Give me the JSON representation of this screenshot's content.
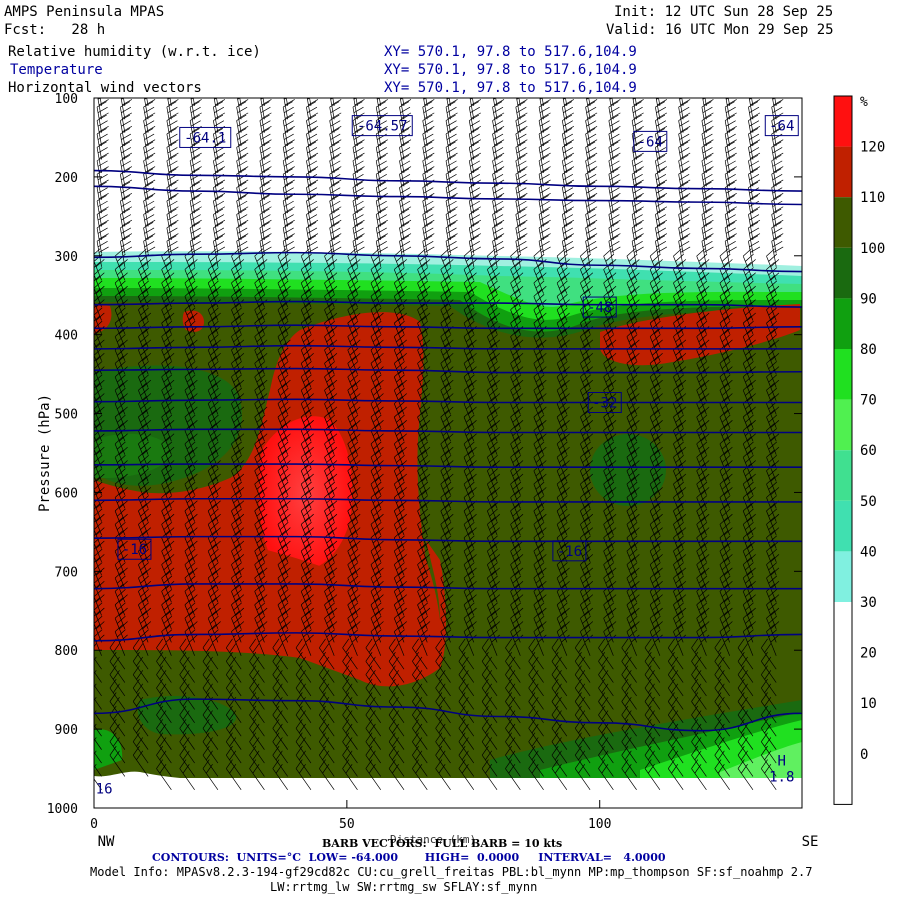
{
  "header": {
    "title": "AMPS Peninsula MPAS",
    "fcst": "Fcst:   28 h",
    "init": "Init: 12 UTC Sun 28 Sep 25",
    "valid": "Valid: 16 UTC Mon 29 Sep 25",
    "fields": [
      {
        "label": "Relative humidity (w.r.t. ice)",
        "xy": "XY= 570.1, 97.8 to 517.6,104.9"
      },
      {
        "label": "Temperature",
        "xy": "XY= 570.1, 97.8 to 517.6,104.9"
      },
      {
        "label": "Horizontal wind vectors",
        "xy": "XY= 570.1, 97.8 to 517.6,104.9"
      }
    ]
  },
  "footer": {
    "barb_note": "BARB VECTORS:  FULL BARB = 10 kts",
    "xlabel_partial": "Distance (km)",
    "contours": "CONTOURS:  UNITS=°C  LOW= -64.000       HIGH=  0.0000     INTERVAL=   4.0000",
    "model_info": "Model Info: MPASv8.2.3-194-gf29cd82c CU:cu_grell_freitas PBL:bl_mynn MP:mp_thompson SF:sf_noahmp 2.7",
    "model_info2": "LW:rrtmg_lw SW:rrtmg_sw SFLAY:sf_mynn"
  },
  "colors": {
    "dark_olive": "#3e5a00",
    "dark_red": "#c02000",
    "red": "#ff1010",
    "bright_red": "#ff2020",
    "greens": [
      "#2a6a10",
      "#10a010",
      "#20e020",
      "#60f060",
      "#40e080",
      "#70f0c0"
    ],
    "contour": "#000080"
  },
  "chart_data": {
    "type": "heatmap",
    "ylabel": "Pressure (hPa)",
    "xlabel": "Distance (km)",
    "x_ticks": [
      "0",
      "50",
      "100"
    ],
    "x_range": [
      0,
      140
    ],
    "y_ticks": [
      "100",
      "200",
      "300",
      "400",
      "500",
      "600",
      "700",
      "800",
      "900",
      "1000"
    ],
    "y_range": [
      100,
      1000
    ],
    "x_ends": [
      "NW",
      "SE"
    ],
    "colorbar": {
      "unit": "%",
      "labels": [
        "120",
        "110",
        "100",
        "90",
        "80",
        "70",
        "60",
        "50",
        "40",
        "30",
        "20",
        "10",
        "0"
      ],
      "colors": [
        "#ff1010",
        "#c02000",
        "#3e5a00",
        "#1a6a10",
        "#10a010",
        "#20e020",
        "#50f050",
        "#40e090",
        "#40e0b0",
        "#80f0e0",
        "#ffffff",
        "#ffffff",
        "#ffffff",
        "#ffffff"
      ]
    },
    "contour_labels": [
      {
        "text": "-64.1",
        "x": 22,
        "p": 150
      },
      {
        "text": "-64.57",
        "x": 57,
        "p": 135
      },
      {
        "text": "-64",
        "x": 110,
        "p": 155
      },
      {
        "text": "-64",
        "x": 136,
        "p": 135
      },
      {
        "text": "-48",
        "x": 100,
        "p": 365
      },
      {
        "text": "-32",
        "x": 101,
        "p": 486
      },
      {
        "text": "-16",
        "x": 8,
        "p": 672
      },
      {
        "text": "-16",
        "x": 94,
        "p": 674
      },
      {
        "text": "16",
        "x": 2,
        "p": 975
      },
      {
        "text": "H",
        "x": 136,
        "p": 940
      },
      {
        "text": "1.8",
        "x": 136,
        "p": 960
      }
    ],
    "isotherms_p_at_x": {
      "x": [
        0,
        20,
        40,
        60,
        80,
        100,
        120,
        140
      ],
      "lines": [
        [
          192,
          198,
          200,
          205,
          208,
          212,
          215,
          218
        ],
        [
          212,
          218,
          222,
          225,
          228,
          230,
          232,
          235
        ],
        [
          302,
          298,
          296,
          300,
          304,
          312,
          316,
          320
        ],
        [
          362,
          360,
          358,
          360,
          360,
          362,
          362,
          365
        ],
        [
          392,
          390,
          388,
          390,
          392,
          392,
          392,
          390
        ],
        [
          418,
          416,
          414,
          416,
          418,
          418,
          418,
          418
        ],
        [
          445,
          444,
          443,
          445,
          448,
          448,
          448,
          447
        ],
        [
          485,
          483,
          482,
          484,
          486,
          486,
          486,
          486
        ],
        [
          522,
          520,
          520,
          522,
          524,
          524,
          524,
          524
        ],
        [
          565,
          564,
          564,
          566,
          568,
          568,
          568,
          568
        ],
        [
          610,
          608,
          608,
          610,
          612,
          612,
          612,
          612
        ],
        [
          658,
          656,
          656,
          660,
          662,
          662,
          662,
          662
        ],
        [
          722,
          716,
          716,
          720,
          722,
          722,
          722,
          722
        ],
        [
          788,
          780,
          778,
          782,
          784,
          784,
          784,
          780
        ],
        [
          880,
          862,
          864,
          872,
          884,
          892,
          902,
          880
        ]
      ]
    },
    "terrain_p_at_x": {
      "x": [
        0,
        8,
        15,
        30,
        60,
        100,
        130,
        140
      ],
      "p": [
        968,
        960,
        972,
        972,
        972,
        972,
        972,
        972
      ]
    },
    "rh_regions": [
      {
        "name": "upper-clear",
        "color": "#ffffff",
        "p_top": 100,
        "p_bottom": 290
      },
      {
        "name": "moist-main",
        "color": "#3e5a00",
        "p_top": 358,
        "p_bottom": 972
      }
    ]
  }
}
